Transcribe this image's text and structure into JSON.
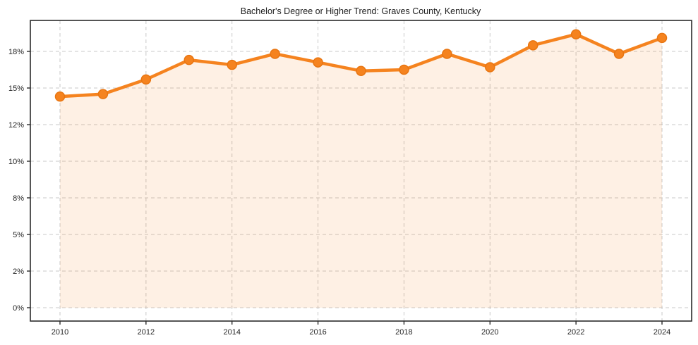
{
  "chart_data": {
    "type": "area",
    "title": "Bachelor's Degree or Higher Trend: Graves County, Kentucky",
    "x": [
      2010,
      2011,
      2012,
      2013,
      2014,
      2015,
      2016,
      2017,
      2018,
      2019,
      2020,
      2021,
      2022,
      2023,
      2024
    ],
    "values": [
      14.3,
      14.5,
      15.7,
      17.3,
      16.9,
      17.8,
      17.1,
      16.4,
      16.5,
      17.8,
      16.7,
      18.5,
      19.4,
      17.8,
      19.1
    ],
    "unit": "%",
    "xlabel": "",
    "ylabel": "",
    "x_tick_labels": [
      "2010",
      "2012",
      "2014",
      "2016",
      "2018",
      "2020",
      "2022",
      "2024"
    ],
    "y_tick_values": [
      18,
      15,
      12,
      10,
      8,
      5,
      2,
      0
    ],
    "y_tick_labels": [
      "18%",
      "15%",
      "12%",
      "10%",
      "8%",
      "5%",
      "2%",
      "0%"
    ],
    "grid": true,
    "grid_style": "dashed",
    "legend": false,
    "marker": "circle",
    "colors": {
      "line": "#F5831F",
      "marker_fill": "#F5831F",
      "marker_edge": "#E87511",
      "area_fill": "#F5831F",
      "area_fill_opacity": 0.12,
      "gridline": "#C9C9C9",
      "axis_border": "#2B2B2B",
      "tick_text": "#262626",
      "title_text": "#1F1F1F",
      "background": "#FFFFFF"
    }
  }
}
